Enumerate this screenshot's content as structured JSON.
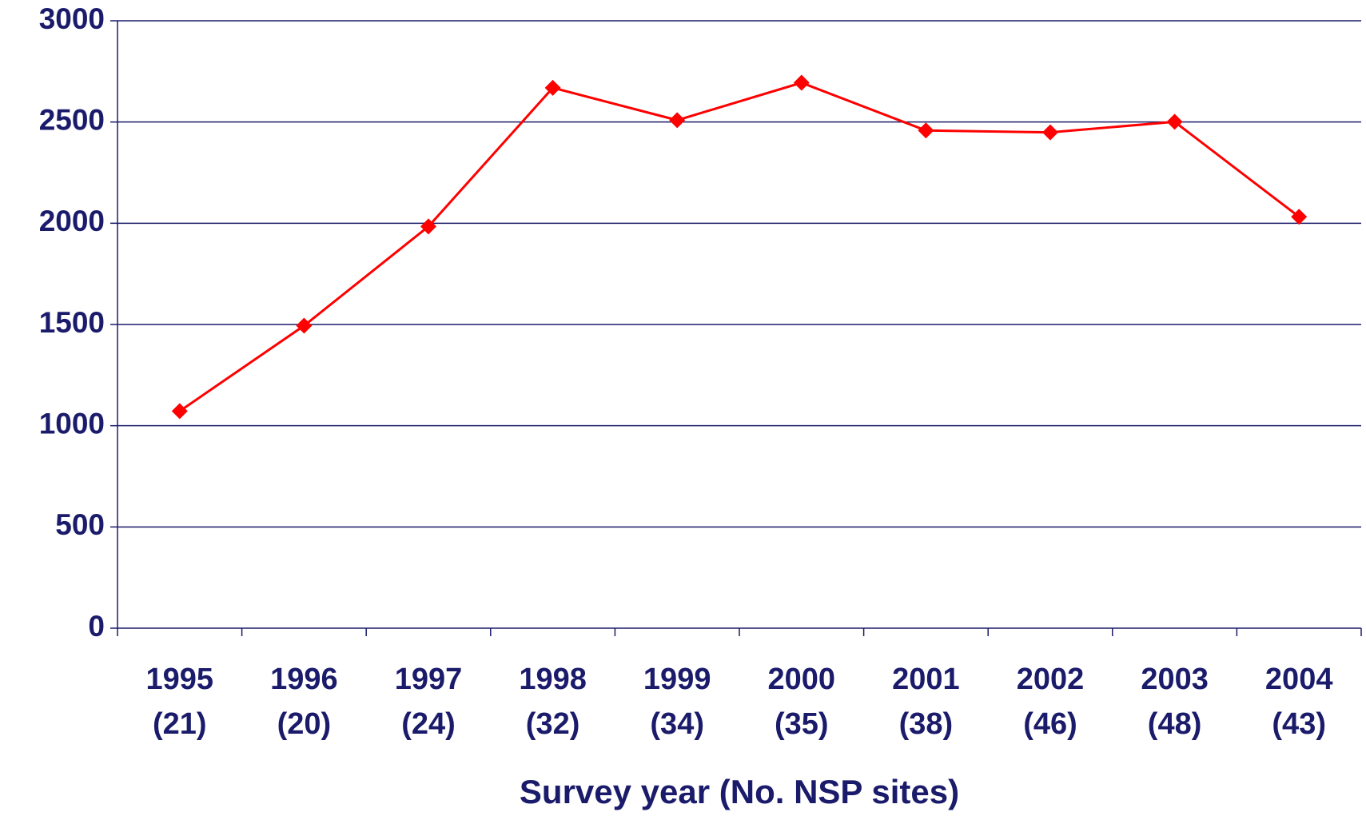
{
  "chart_data": {
    "type": "line",
    "x_label": "Survey year (No. NSP sites)",
    "categories": [
      [
        "1995",
        "(21)"
      ],
      [
        "1996",
        "(20)"
      ],
      [
        "1997",
        "(24)"
      ],
      [
        "1998",
        "(32)"
      ],
      [
        "1999",
        "(34)"
      ],
      [
        "2000",
        "(35)"
      ],
      [
        "2001",
        "(38)"
      ],
      [
        "2002",
        "(46)"
      ],
      [
        "2003",
        "(48)"
      ],
      [
        "2004",
        "(43)"
      ]
    ],
    "series": [
      {
        "color": "#ff0000",
        "values": [
          1072,
          1494,
          1984,
          2669,
          2509,
          2694,
          2458,
          2449,
          2501,
          2032
        ]
      }
    ],
    "ylim": [
      0,
      3000
    ],
    "yticks": [
      0,
      500,
      1000,
      1500,
      2000,
      2500,
      3000
    ],
    "grid": true
  }
}
